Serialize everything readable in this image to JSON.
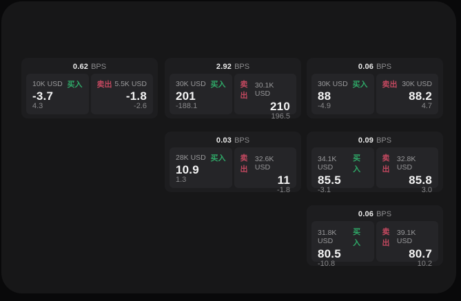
{
  "labels": {
    "bps_unit": "BPS",
    "buy": "买入",
    "sell": "卖出"
  },
  "colors": {
    "page_bg": "#09090a",
    "panel_bg": "#171718",
    "card_bg": "#1d1d1f",
    "tile_bg": "#252528",
    "buy_green": "#2fa968",
    "sell_red": "#c2485f",
    "label_gray": "#9a9a9c",
    "value_white": "#f4f4f4",
    "delta_gray": "#89898b"
  },
  "cards": [
    {
      "bps": "0.62",
      "buy": {
        "size": "10K USD",
        "price": "-3.7",
        "delta": "4.3"
      },
      "sell": {
        "size": "5.5K USD",
        "price": "-1.8",
        "delta": "-2.6"
      }
    },
    {
      "bps": "2.92",
      "buy": {
        "size": "30K USD",
        "price": "201",
        "delta": "-188.1"
      },
      "sell": {
        "size": "30.1K USD",
        "price": "210",
        "delta": "196.5"
      }
    },
    {
      "bps": "0.06",
      "buy": {
        "size": "30K USD",
        "price": "88",
        "delta": "-4.9"
      },
      "sell": {
        "size": "30K USD",
        "price": "88.2",
        "delta": "4.7"
      }
    },
    {
      "bps": "0.03",
      "buy": {
        "size": "28K USD",
        "price": "10.9",
        "delta": "1.3"
      },
      "sell": {
        "size": "32.6K USD",
        "price": "11",
        "delta": "-1.8"
      }
    },
    {
      "bps": "0.09",
      "buy": {
        "size": "34.1K USD",
        "price": "85.5",
        "delta": "-3.1"
      },
      "sell": {
        "size": "32.8K USD",
        "price": "85.8",
        "delta": "3.0"
      }
    },
    {
      "bps": "0.06",
      "buy": {
        "size": "31.8K USD",
        "price": "80.5",
        "delta": "-10.8"
      },
      "sell": {
        "size": "39.1K USD",
        "price": "80.7",
        "delta": "10.2"
      }
    }
  ]
}
